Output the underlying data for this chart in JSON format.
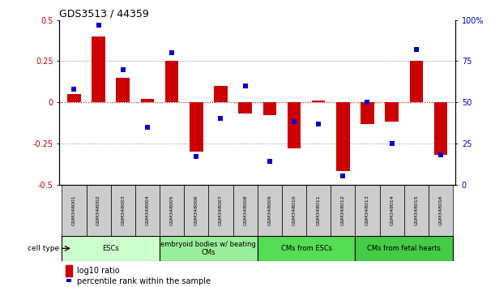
{
  "title": "GDS3513 / 44359",
  "samples": [
    "GSM348001",
    "GSM348002",
    "GSM348003",
    "GSM348004",
    "GSM348005",
    "GSM348006",
    "GSM348007",
    "GSM348008",
    "GSM348009",
    "GSM348010",
    "GSM348011",
    "GSM348012",
    "GSM348013",
    "GSM348014",
    "GSM348015",
    "GSM348016"
  ],
  "log10_ratio": [
    0.05,
    0.4,
    0.15,
    0.02,
    0.25,
    -0.3,
    0.1,
    -0.07,
    -0.08,
    -0.28,
    0.01,
    -0.42,
    -0.13,
    -0.12,
    0.25,
    -0.32
  ],
  "percentile_rank": [
    58,
    97,
    70,
    35,
    80,
    17,
    40,
    60,
    14,
    38,
    37,
    5,
    50,
    25,
    82,
    18
  ],
  "cell_type_groups": [
    {
      "label": "ESCs",
      "start": 0,
      "end": 3,
      "color": "#ccffcc"
    },
    {
      "label": "embryoid bodies w/ beating\nCMs",
      "start": 4,
      "end": 7,
      "color": "#99ee99"
    },
    {
      "label": "CMs from ESCs",
      "start": 8,
      "end": 11,
      "color": "#55dd55"
    },
    {
      "label": "CMs from fetal hearts",
      "start": 12,
      "end": 15,
      "color": "#44cc44"
    }
  ],
  "ylim_left": [
    -0.5,
    0.5
  ],
  "ylim_right": [
    0,
    100
  ],
  "yticks_left": [
    -0.5,
    -0.25,
    0,
    0.25,
    0.5
  ],
  "yticks_right": [
    0,
    25,
    50,
    75,
    100
  ],
  "bar_color": "#cc0000",
  "dot_color": "#0000cc",
  "hline_color": "#cc0000",
  "dotted_line_color": "#777777",
  "legend_bar_label": "log10 ratio",
  "legend_dot_label": "percentile rank within the sample",
  "sample_box_color": "#cccccc",
  "cell_type_label": "cell type"
}
